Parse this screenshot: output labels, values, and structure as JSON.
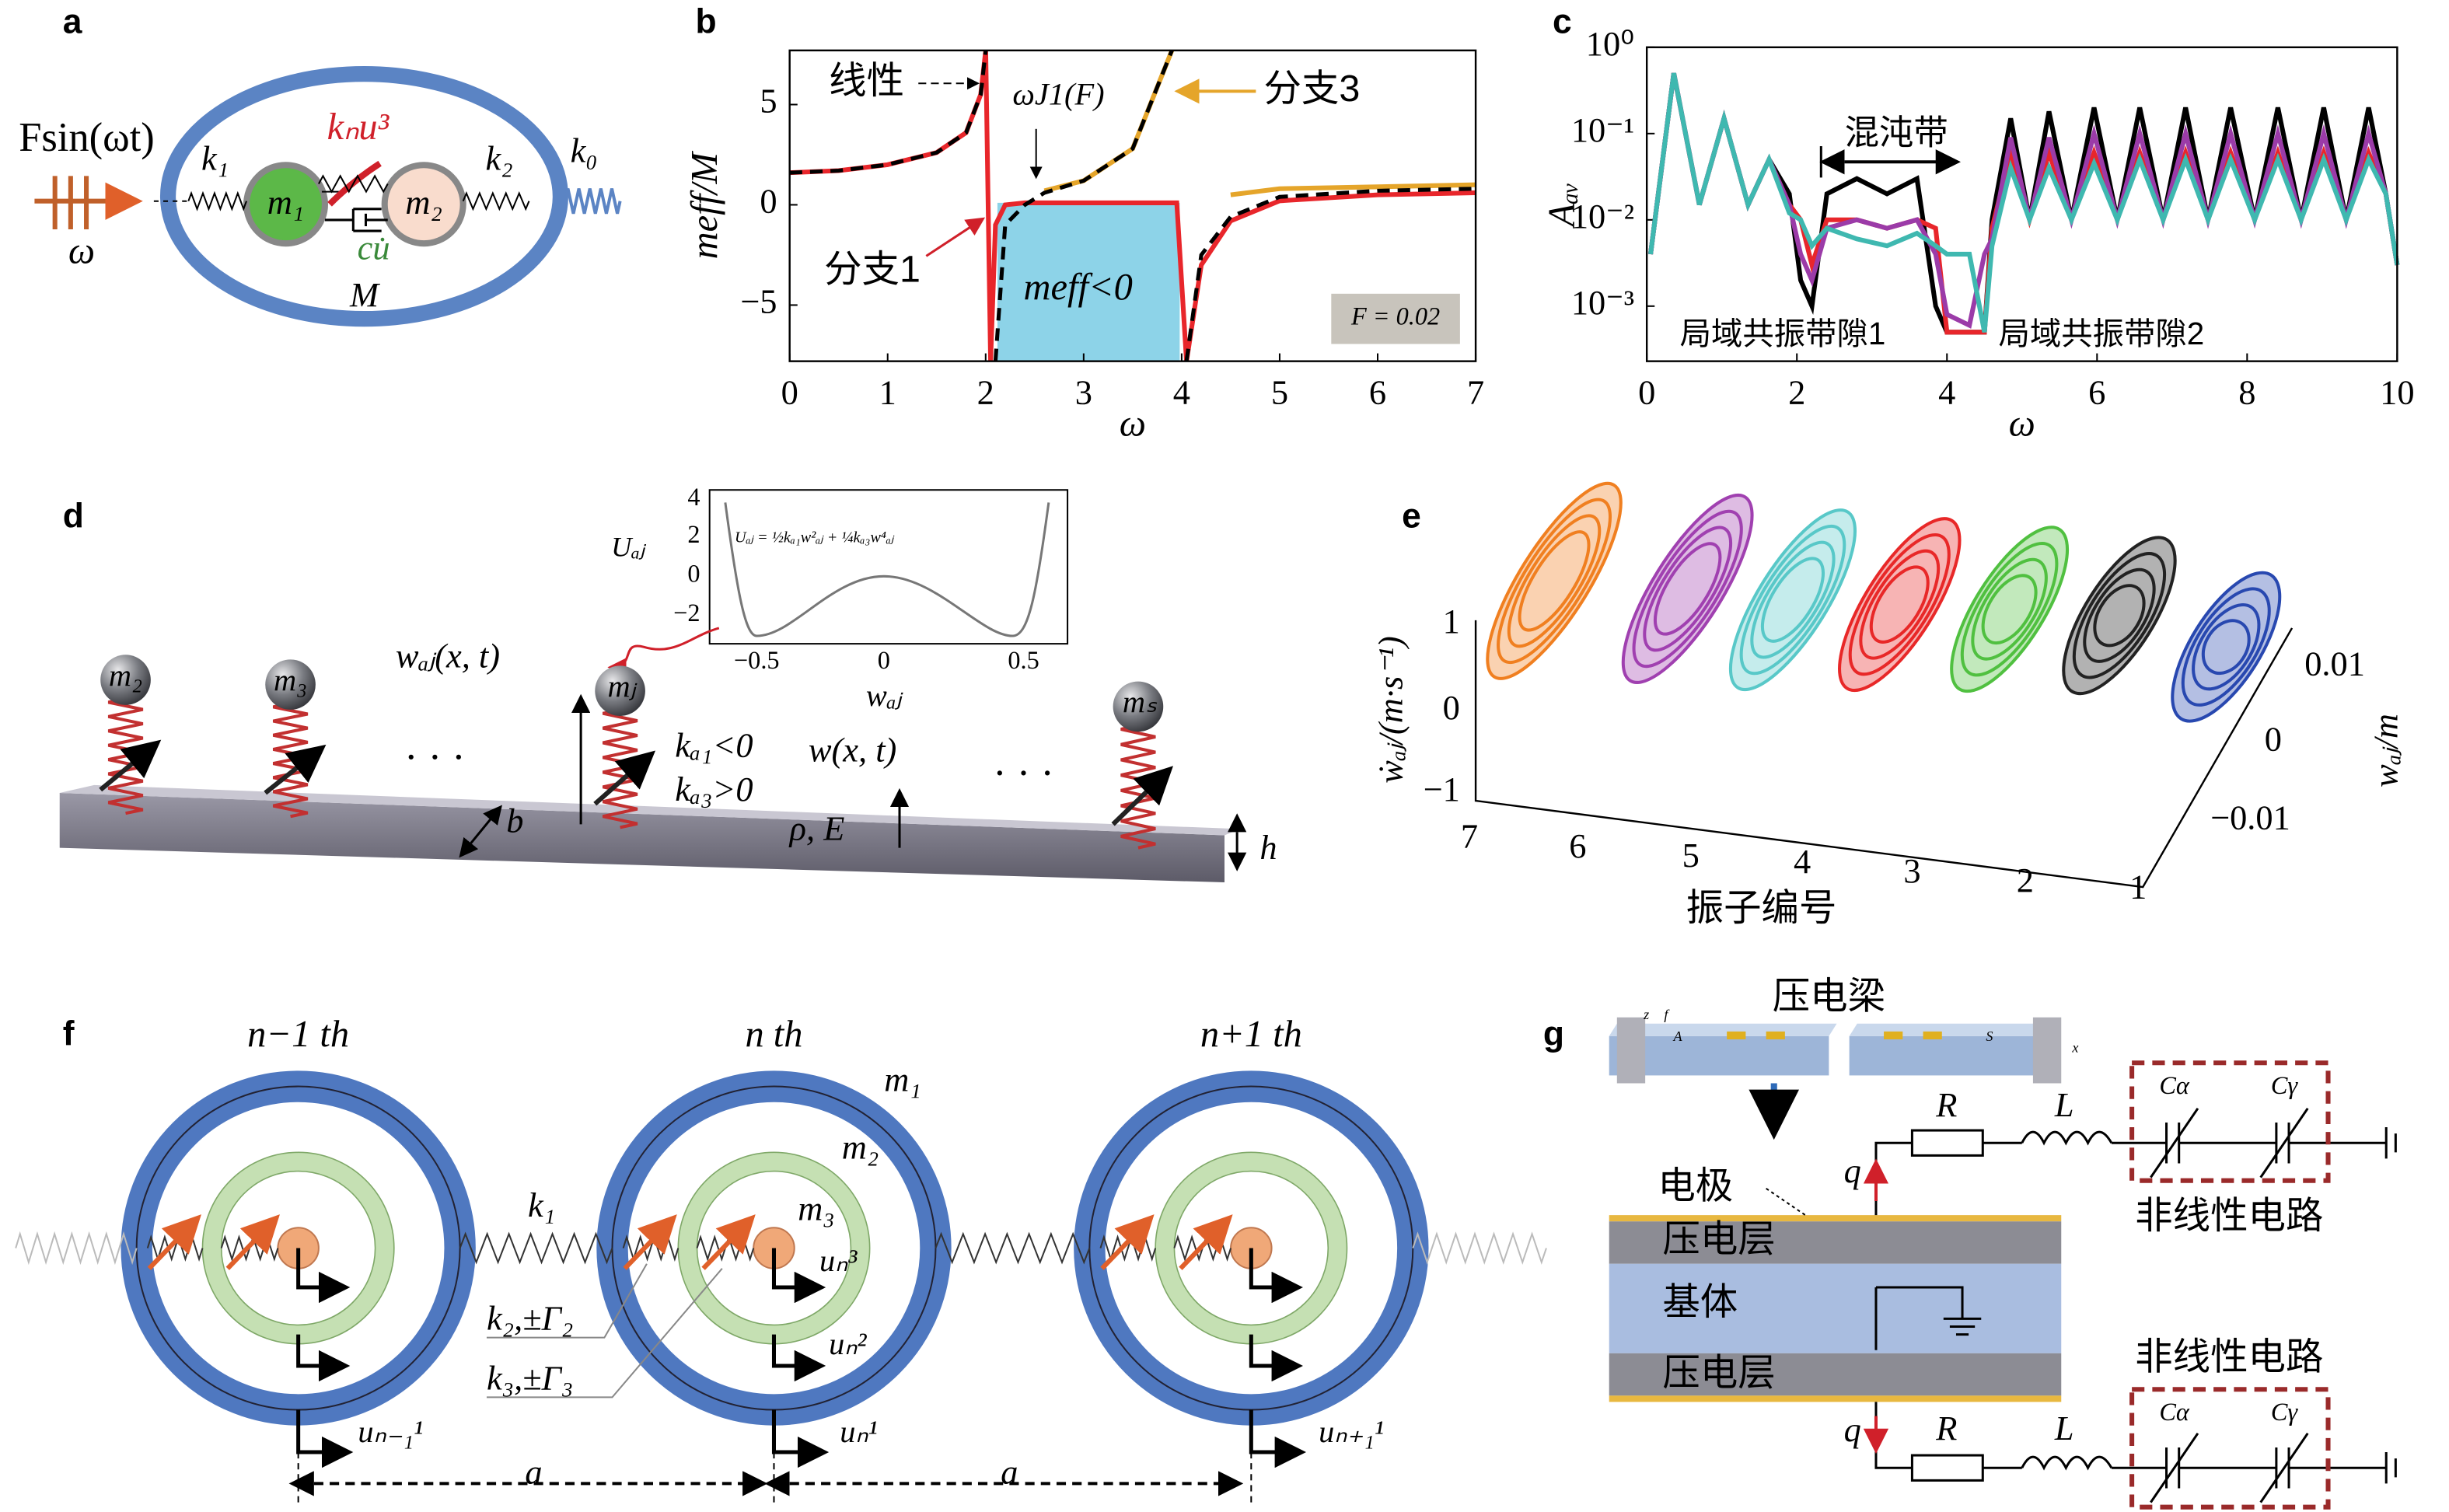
{
  "panels": {
    "a": {
      "label": "a",
      "force": "Fsin(ωt)",
      "omega": "ω",
      "k1": "k₁",
      "kn": "kₙu³",
      "k2": "k₂",
      "k0": "k₀",
      "m1": "m₁",
      "m2": "m₂",
      "damping": "cu̇",
      "M": "M"
    },
    "d": {
      "label": "d",
      "masses": [
        "m₂",
        "m₃",
        "mⱼ",
        "mₛ"
      ],
      "w_aj": "wₐⱼ(x, t)",
      "ka1": "kₐ₁<0",
      "ka3": "kₐ₃>0",
      "w": "w(x, t)",
      "material": "ρ, E",
      "b": "b",
      "h": "h",
      "ellipsis": "· · ·",
      "inset": {
        "ylabel": "Uₐⱼ",
        "xlabel": "wₐⱼ",
        "formula": "Uₐⱼ = ½kₐ₁w²ₐⱼ + ¼kₐ₃w⁴ₐⱼ",
        "xticks": [
          "−0.5",
          "0",
          "0.5"
        ],
        "yticks": [
          "4",
          "2",
          "0",
          "−2"
        ]
      }
    },
    "e": {
      "label": "e",
      "ylabel": "ẇₐⱼ/(m·s⁻¹)",
      "xlabel": "振子编号",
      "zlabel": "wₐⱼ/m",
      "yticks": [
        "1",
        "0",
        "−1"
      ],
      "xticks": [
        "7",
        "6",
        "5",
        "4",
        "3",
        "2",
        "1"
      ],
      "zticks": [
        "0.01",
        "0",
        "−0.01"
      ]
    },
    "f": {
      "label": "f",
      "cells": [
        "n−1 th",
        "n th",
        "n+1 th"
      ],
      "m1": "m₁",
      "m2": "m₂",
      "m3": "m₃",
      "k1": "k₁",
      "k2": "k₂,±Γ₂",
      "k3": "k₃,±Γ₃",
      "u3": "uₙ³",
      "u2": "uₙ²",
      "u1": [
        "uₙ₋₁¹",
        "uₙ¹",
        "uₙ₊₁¹"
      ],
      "a": "a"
    },
    "g": {
      "label": "g",
      "beam": "压电梁",
      "beam_axes": [
        "z",
        "f",
        "A",
        "S",
        "x"
      ],
      "electrode": "电极",
      "piezo": "压电层",
      "substrate": "基体",
      "q": "q",
      "R": "R",
      "L": "L",
      "Ca": "Cα",
      "Cg": "Cγ",
      "circuit": "非线性电路"
    }
  },
  "chart_data": [
    {
      "type": "line",
      "panel_label": "b",
      "xlabel": "ω",
      "ylabel": "meff/M",
      "xlim": [
        0,
        7
      ],
      "xticks": [
        0,
        1,
        2,
        3,
        4,
        5,
        6,
        7
      ],
      "ylim": [
        -7.8,
        7.7
      ],
      "yticks": [
        {
          "value": -5,
          "label": "−5"
        },
        0,
        5
      ],
      "x": [
        0,
        0.5,
        1,
        1.5,
        1.8,
        1.95,
        2.0,
        2.05,
        2.1,
        2.2,
        2.4,
        2.6,
        3,
        3.5,
        3.9,
        3.95,
        4.05,
        4.2,
        4.5,
        5,
        6,
        7
      ],
      "series": [
        {
          "name": "分支1",
          "color": "#e8262b",
          "style": "solid",
          "values": [
            1.6,
            1.7,
            2.0,
            2.6,
            3.6,
            5.5,
            7.7,
            -7.8,
            -1.0,
            0.0,
            0.1,
            0.1,
            0.1,
            0.1,
            0.1,
            0.1,
            -7.8,
            -3,
            -0.8,
            0.2,
            0.5,
            0.6
          ]
        },
        {
          "name": "分支3",
          "color": "#e5a52a",
          "style": "solid",
          "values": [
            null,
            null,
            null,
            null,
            null,
            null,
            null,
            null,
            null,
            null,
            null,
            0.7,
            1.2,
            2.8,
            7.7,
            null,
            null,
            null,
            0.5,
            0.8,
            0.9,
            1.0
          ]
        },
        {
          "name": "线性",
          "color": "#000000",
          "style": "dashed",
          "values": [
            1.6,
            1.7,
            2.0,
            2.6,
            3.6,
            5.5,
            7.7,
            null,
            -7.8,
            -1.0,
            0.0,
            0.6,
            1.2,
            2.8,
            7.7,
            null,
            -7.8,
            -2.5,
            -0.6,
            0.4,
            0.7,
            0.8
          ]
        }
      ],
      "fill_between": {
        "x": [
          2.12,
          3.98
        ],
        "y": [
          -7.8,
          0.1
        ],
        "color": "#8dd3e8"
      },
      "annotations": [
        "ωJ1(F)",
        "meff<0",
        "F = 0.02"
      ]
    },
    {
      "type": "line",
      "panel_label": "c",
      "xlabel": "ω",
      "ylabel": "Aₐᵥ",
      "log_y": true,
      "xlim": [
        0,
        10
      ],
      "xticks": [
        0,
        2,
        4,
        6,
        8,
        10
      ],
      "ylim": [
        0.00023,
        1
      ],
      "yticks": [
        {
          "value": 1,
          "label": "10⁰"
        },
        {
          "value": 0.1,
          "label": "10⁻¹"
        },
        {
          "value": 0.01,
          "label": "10⁻²"
        },
        {
          "value": 0.001,
          "label": "10⁻³"
        }
      ],
      "x": [
        0.05,
        0.36,
        0.7,
        1.03,
        1.35,
        1.63,
        1.9,
        2.05,
        2.2,
        2.4,
        2.8,
        3.2,
        3.6,
        3.85,
        4.0,
        4.3,
        4.5,
        4.6,
        4.85,
        5.1,
        5.36,
        5.66,
        5.96,
        6.27,
        6.57,
        6.88,
        7.18,
        7.48,
        7.78,
        8.1,
        8.41,
        8.72,
        9.02,
        9.32,
        9.62,
        9.85,
        10
      ],
      "series": [
        {
          "color": "#000000",
          "values": [
            0.004,
            0.5,
            0.015,
            0.15,
            0.015,
            0.05,
            0.02,
            0.002,
            0.001,
            0.02,
            0.03,
            0.02,
            0.03,
            0.001,
            0.0005,
            0.0005,
            0.0005,
            0.01,
            0.15,
            0.01,
            0.18,
            0.01,
            0.2,
            0.01,
            0.2,
            0.01,
            0.2,
            0.01,
            0.2,
            0.01,
            0.2,
            0.01,
            0.2,
            0.01,
            0.2,
            0.02,
            0.003
          ]
        },
        {
          "color": "#e8262b",
          "values": [
            0.004,
            0.5,
            0.015,
            0.15,
            0.015,
            0.05,
            0.015,
            0.01,
            0.003,
            0.01,
            0.01,
            0.008,
            0.01,
            0.008,
            0.0005,
            0.0005,
            0.0005,
            0.008,
            0.06,
            0.01,
            0.06,
            0.01,
            0.06,
            0.01,
            0.06,
            0.01,
            0.06,
            0.01,
            0.06,
            0.01,
            0.06,
            0.01,
            0.06,
            0.01,
            0.06,
            0.02,
            0.003
          ]
        },
        {
          "color": "#9b3ba8",
          "values": [
            0.004,
            0.5,
            0.015,
            0.15,
            0.015,
            0.05,
            0.015,
            0.004,
            0.002,
            0.008,
            0.01,
            0.008,
            0.01,
            0.004,
            0.0008,
            0.0006,
            0.004,
            0.006,
            0.09,
            0.01,
            0.09,
            0.01,
            0.1,
            0.01,
            0.1,
            0.01,
            0.1,
            0.01,
            0.1,
            0.01,
            0.1,
            0.01,
            0.1,
            0.01,
            0.1,
            0.02,
            0.003
          ]
        },
        {
          "color": "#3fb8b0",
          "values": [
            0.004,
            0.5,
            0.015,
            0.15,
            0.015,
            0.05,
            0.012,
            0.01,
            0.005,
            0.008,
            0.006,
            0.005,
            0.007,
            0.005,
            0.004,
            0.004,
            0.0005,
            0.005,
            0.04,
            0.01,
            0.04,
            0.01,
            0.045,
            0.01,
            0.05,
            0.01,
            0.05,
            0.01,
            0.05,
            0.01,
            0.05,
            0.01,
            0.05,
            0.01,
            0.05,
            0.02,
            0.003
          ]
        }
      ],
      "annotations": [
        "混沌带",
        "局域共振带隙1",
        "局域共振带隙2"
      ]
    }
  ]
}
